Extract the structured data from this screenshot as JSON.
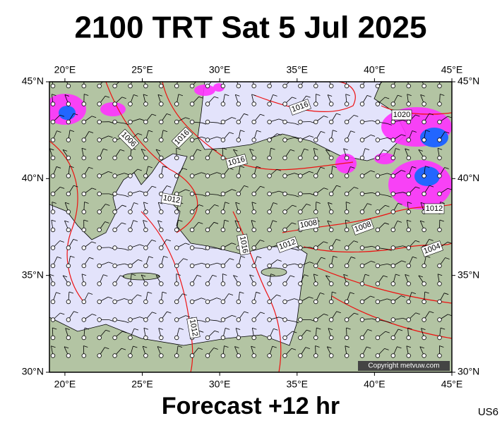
{
  "title": "2100 TRT Sat 5 Jul 2025",
  "map": {
    "xlim": [
      19,
      45
    ],
    "ylim": [
      30,
      45
    ],
    "lon_ticks": [
      {
        "value": 20,
        "label": "20°E"
      },
      {
        "value": 25,
        "label": "25°E"
      },
      {
        "value": 30,
        "label": "30°E"
      },
      {
        "value": 35,
        "label": "35°E"
      },
      {
        "value": 40,
        "label": "40°E"
      },
      {
        "value": 45,
        "label": "45°E"
      }
    ],
    "lat_ticks": [
      {
        "value": 45,
        "label": "45°N"
      },
      {
        "value": 40,
        "label": "40°N"
      },
      {
        "value": 35,
        "label": "35°N"
      },
      {
        "value": 30,
        "label": "30°N"
      }
    ],
    "isobar_labels": [
      1016,
      1006,
      1016,
      1016,
      1012,
      1008,
      1008,
      1016,
      1012,
      1020,
      1012,
      1004,
      1012
    ],
    "copyright": "Copyright metvuw.com"
  },
  "footer": "Forecast +12 hr",
  "code": "US6"
}
